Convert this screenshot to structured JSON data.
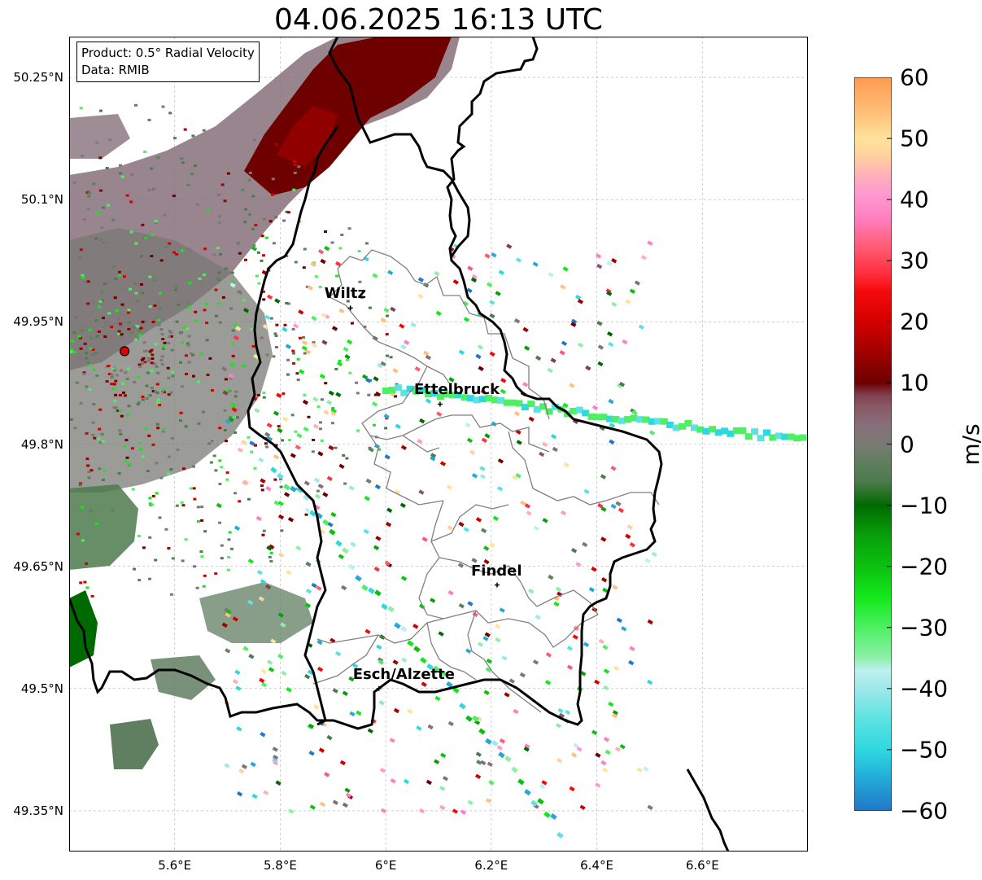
{
  "title": "04.06.2025 16:13 UTC",
  "info_box": {
    "product": "Product: 0.5° Radial Velocity",
    "source": "Data: RMIB"
  },
  "map": {
    "lon_range": [
      5.4,
      6.8
    ],
    "lat_range": [
      49.3,
      50.3
    ],
    "lat_ticks": [
      {
        "value": 50.25,
        "label": "50.25°N"
      },
      {
        "value": 50.1,
        "label": "50.1°N"
      },
      {
        "value": 49.95,
        "label": "49.95°N"
      },
      {
        "value": 49.8,
        "label": "49.8°N"
      },
      {
        "value": 49.65,
        "label": "49.65°N"
      },
      {
        "value": 49.5,
        "label": "49.5°N"
      },
      {
        "value": 49.35,
        "label": "49.35°N"
      }
    ],
    "lon_ticks": [
      {
        "value": 5.6,
        "label": "5.6°E"
      },
      {
        "value": 5.8,
        "label": "5.8°E"
      },
      {
        "value": 6.0,
        "label": "6°E"
      },
      {
        "value": 6.2,
        "label": "6.2°E"
      },
      {
        "value": 6.4,
        "label": "6.4°E"
      },
      {
        "value": 6.6,
        "label": "6.6°E"
      }
    ],
    "radar_site": {
      "lon": 5.505,
      "lat": 49.914,
      "color": "#e00000"
    },
    "places": [
      {
        "name": "Wiltz",
        "lon": 5.933,
        "lat": 49.967
      },
      {
        "name": "Ettelbruck",
        "lon": 6.103,
        "lat": 49.849
      },
      {
        "name": "Findel",
        "lon": 6.211,
        "lat": 49.627
      },
      {
        "name": "Esch/Alzette",
        "lon": 5.987,
        "lat": 49.5
      }
    ]
  },
  "colorbar": {
    "unit": "m/s",
    "range": [
      -60,
      60
    ],
    "ticks": [
      {
        "value": 60,
        "label": "60"
      },
      {
        "value": 50,
        "label": "50"
      },
      {
        "value": 40,
        "label": "40"
      },
      {
        "value": 30,
        "label": "30"
      },
      {
        "value": 20,
        "label": "20"
      },
      {
        "value": 10,
        "label": "10"
      },
      {
        "value": 0,
        "label": "0"
      },
      {
        "value": -10,
        "label": "−10"
      },
      {
        "value": -20,
        "label": "−20"
      },
      {
        "value": -30,
        "label": "−30"
      },
      {
        "value": -40,
        "label": "−40"
      },
      {
        "value": -50,
        "label": "−50"
      },
      {
        "value": -60,
        "label": "−60"
      }
    ],
    "stops": [
      {
        "v": -60,
        "c": "#1f78c8"
      },
      {
        "v": -55,
        "c": "#23a8d8"
      },
      {
        "v": -50,
        "c": "#2ed8e0"
      },
      {
        "v": -45,
        "c": "#5de2e2"
      },
      {
        "v": -40,
        "c": "#9ee8ea"
      },
      {
        "v": -37,
        "c": "#bff0f0"
      },
      {
        "v": -35,
        "c": "#8ef0a8"
      },
      {
        "v": -30,
        "c": "#4cf062"
      },
      {
        "v": -25,
        "c": "#12e81a"
      },
      {
        "v": -20,
        "c": "#0cc010"
      },
      {
        "v": -15,
        "c": "#08a00a"
      },
      {
        "v": -10,
        "c": "#006a00"
      },
      {
        "v": -6,
        "c": "#4e7a4e"
      },
      {
        "v": -3,
        "c": "#607e60"
      },
      {
        "v": 0,
        "c": "#7a7a74"
      },
      {
        "v": 3,
        "c": "#86707a"
      },
      {
        "v": 6,
        "c": "#8a5a66"
      },
      {
        "v": 8,
        "c": "#804050"
      },
      {
        "v": 10,
        "c": "#6e0000"
      },
      {
        "v": 15,
        "c": "#a00000"
      },
      {
        "v": 20,
        "c": "#d40000"
      },
      {
        "v": 25,
        "c": "#f50a0a"
      },
      {
        "v": 28,
        "c": "#ff3040"
      },
      {
        "v": 32,
        "c": "#ff5a70"
      },
      {
        "v": 37,
        "c": "#ff80c0"
      },
      {
        "v": 41,
        "c": "#ff9ad0"
      },
      {
        "v": 44,
        "c": "#ffb0b8"
      },
      {
        "v": 47,
        "c": "#ffd0a0"
      },
      {
        "v": 50,
        "c": "#ffe39a"
      },
      {
        "v": 54,
        "c": "#ffc07a"
      },
      {
        "v": 60,
        "c": "#ff9a50"
      }
    ]
  }
}
